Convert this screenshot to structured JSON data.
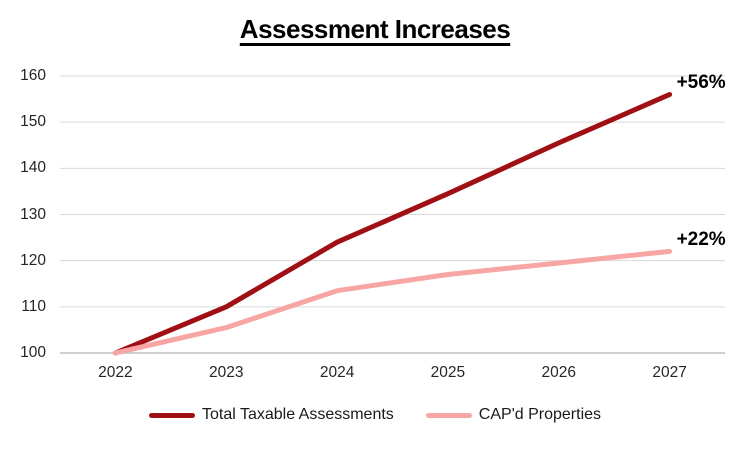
{
  "title": "Assessment Increases",
  "chart_data": {
    "type": "line",
    "title": "Assessment Increases",
    "x": [
      "2022",
      "2023",
      "2024",
      "2025",
      "2026",
      "2027"
    ],
    "series": [
      {
        "name": "Total Taxable Assessments",
        "color": "#A00F14",
        "values": [
          100,
          110,
          124,
          134.5,
          145.5,
          156
        ],
        "end_label": "+56%"
      },
      {
        "name": "CAP'd Properties",
        "color": "#F7A6A4",
        "values": [
          100,
          105.5,
          113.5,
          117,
          119.5,
          122
        ],
        "end_label": "+22%"
      }
    ],
    "yticks": [
      100,
      110,
      120,
      130,
      140,
      150,
      160
    ],
    "ylim": [
      100,
      160
    ],
    "grid": true,
    "legend_position": "bottom",
    "colors": {
      "gridline": "#D9D9D9",
      "axis_line": "#BFBFBF",
      "tick_label": "#262626",
      "title": "#000000",
      "background": "#FFFFFF"
    }
  }
}
